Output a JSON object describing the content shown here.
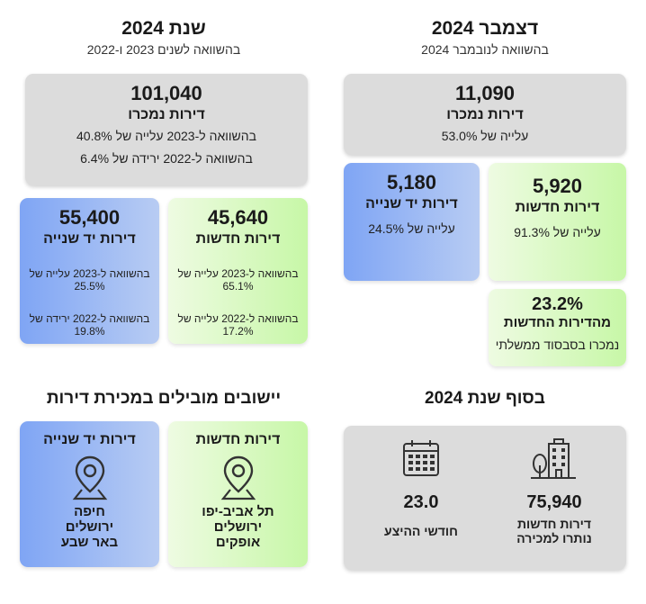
{
  "dec": {
    "title": "דצמבר 2024",
    "subtitle": "בהשוואה לנובמבר 2024",
    "sold": {
      "value": "11,090",
      "label": "דירות נמכרו",
      "change": "עלייה של 53.0%"
    },
    "new": {
      "value": "5,920",
      "label": "דירות חדשות",
      "change": "עלייה של 91.3%"
    },
    "second": {
      "value": "5,180",
      "label": "דירות יד שנייה",
      "change": "עלייה של 24.5%"
    },
    "subsidized": {
      "value": "23.2%",
      "label": "מהדירות החדשות",
      "note": "נמכרו בסבסוד ממשלתי"
    }
  },
  "year": {
    "title": "שנת 2024",
    "subtitle": "בהשוואה לשנים 2023 ו-2022",
    "sold": {
      "value": "101,040",
      "label": "דירות נמכרו",
      "vs2023": "בהשוואה ל-2023 עלייה של 40.8%",
      "vs2022": "בהשוואה ל-2022 ירידה של 6.4%"
    },
    "new": {
      "value": "45,640",
      "label": "דירות חדשות",
      "vs2023": "בהשוואה ל-2023 עלייה של  65.1%",
      "vs2022": "בהשוואה ל-2022 עלייה של 17.2%"
    },
    "second": {
      "value": "55,400",
      "label": "דירות יד שנייה",
      "vs2023": "בהשוואה ל-2023 עלייה של 25.5%",
      "vs2022": "בהשוואה ל-2022 ירידה של 19.8%"
    }
  },
  "end": {
    "title": "בסוף שנת 2024",
    "inventory": {
      "value": "75,940",
      "line1": "דירות חדשות",
      "line2": "נותרו למכירה",
      "icon": "buildings-icon"
    },
    "months": {
      "value": "23.0",
      "label": "חודשי ההיצע",
      "icon": "calendar-icon"
    }
  },
  "leading": {
    "title": "יישובים מובילים במכירת דירות",
    "new": {
      "label": "דירות חדשות",
      "cities": [
        "תל אביב-יפו",
        "ירושלים",
        "אופקים"
      ],
      "icon": "location-pin-icon"
    },
    "second": {
      "label": "דירות יד שנייה",
      "cities": [
        "חיפה",
        "ירושלים",
        "באר שבע"
      ],
      "icon": "location-pin-icon"
    }
  },
  "colors": {
    "gray": "#dcdcdc",
    "green": "#c7f7a7",
    "blue": "#7fa5f4"
  }
}
